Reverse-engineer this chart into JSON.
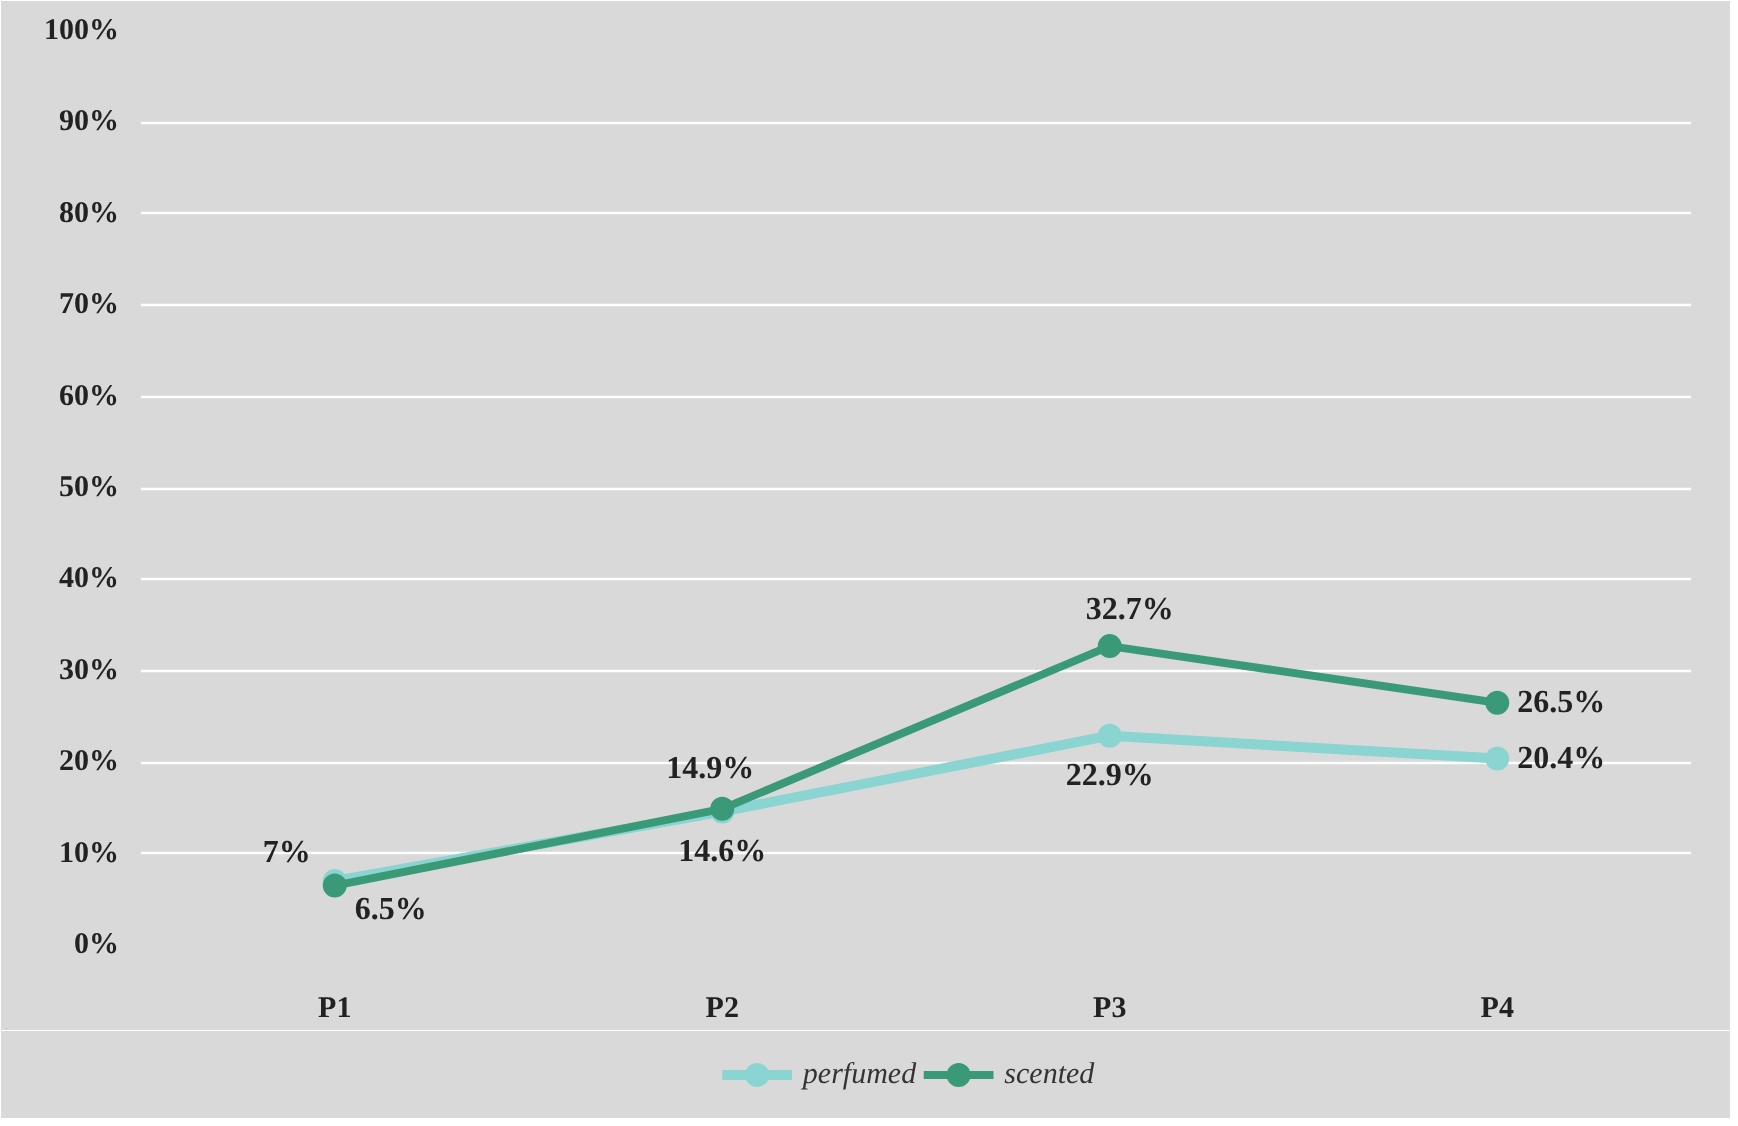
{
  "chart_data": {
    "type": "line",
    "categories": [
      "P1",
      "P2",
      "P3",
      "P4"
    ],
    "series": [
      {
        "name": "perfumed",
        "color": "#8ad4d1",
        "values": [
          7,
          14.6,
          22.9,
          20.4
        ],
        "value_labels": [
          "7%",
          "14.6%",
          "22.9%",
          "20.4%"
        ]
      },
      {
        "name": "scented",
        "color": "#3a9a78",
        "values": [
          6.5,
          14.9,
          32.7,
          26.5
        ],
        "value_labels": [
          "6.5%",
          "14.9%",
          "32.7%",
          "26.5%"
        ]
      }
    ],
    "ylim": [
      0,
      100
    ],
    "yticks": [
      {
        "value": 0,
        "label": "0%"
      },
      {
        "value": 10,
        "label": "10%"
      },
      {
        "value": 20,
        "label": "20%"
      },
      {
        "value": 30,
        "label": "30%"
      },
      {
        "value": 40,
        "label": "40%"
      },
      {
        "value": 50,
        "label": "50%"
      },
      {
        "value": 60,
        "label": "60%"
      },
      {
        "value": 70,
        "label": "70%"
      },
      {
        "value": 80,
        "label": "80%"
      },
      {
        "value": 90,
        "label": "90%"
      },
      {
        "value": 100,
        "label": "100%"
      }
    ],
    "grid": "y",
    "legend": "bottom",
    "marker": "circle",
    "line_style": "solid"
  }
}
